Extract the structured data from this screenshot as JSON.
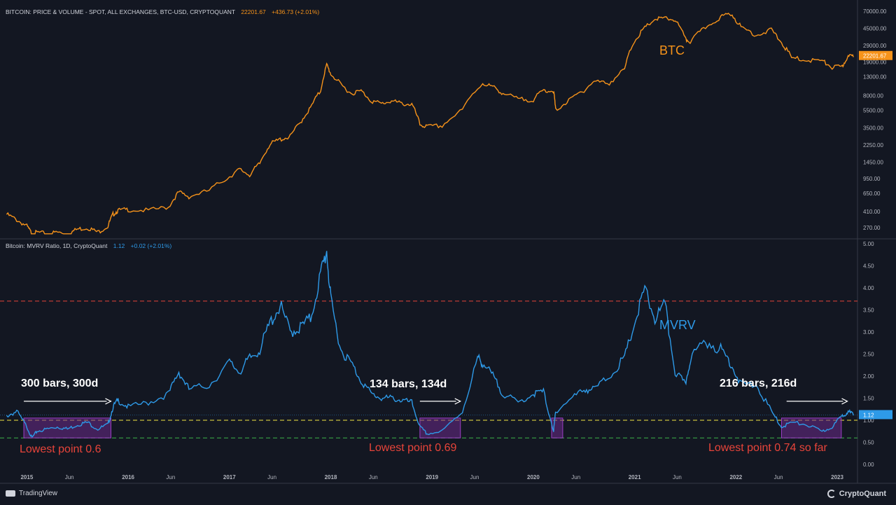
{
  "header_top": {
    "title": "BITCOIN: PRICE & VOLUME - SPOT, ALL EXCHANGES, BTC-USD, CRYPTOQUANT",
    "value": "22201.67",
    "change": "+436.73 (+2.01%)"
  },
  "header_bottom": {
    "title": "Bitcoin: MVRV Ratio, 1D, CryptoQuant",
    "value": "1.12",
    "change": "+0.02 (+2.01%)"
  },
  "footer": {
    "left_brand": "TradingView",
    "right_brand": "CryptoQuant"
  },
  "colors": {
    "background": "#131722",
    "btc": "#f7931a",
    "mvrv": "#2e9ae8",
    "red_line": "#e8443a",
    "yellow_line": "#f0e442",
    "green_line": "#3cb44b",
    "box": "#6b2a8a",
    "annotation_red": "#e8443a"
  },
  "chart_data": [
    {
      "type": "line",
      "scale": "log",
      "series": [
        {
          "name": "BTC",
          "x": [
            2014.8,
            2014.9,
            2015.0,
            2015.05,
            2015.1,
            2015.2,
            2015.3,
            2015.4,
            2015.5,
            2015.6,
            2015.7,
            2015.8,
            2015.85,
            2015.9,
            2016.0,
            2016.2,
            2016.4,
            2016.5,
            2016.6,
            2016.8,
            2017.0,
            2017.1,
            2017.2,
            2017.3,
            2017.4,
            2017.5,
            2017.6,
            2017.7,
            2017.8,
            2017.9,
            2017.96,
            2018.0,
            2018.1,
            2018.2,
            2018.3,
            2018.4,
            2018.5,
            2018.6,
            2018.7,
            2018.8,
            2018.88,
            2018.95,
            2019.1,
            2019.3,
            2019.5,
            2019.6,
            2019.7,
            2019.85,
            2020.0,
            2020.1,
            2020.2,
            2020.22,
            2020.35,
            2020.5,
            2020.6,
            2020.75,
            2020.9,
            2021.0,
            2021.1,
            2021.2,
            2021.3,
            2021.4,
            2021.5,
            2021.55,
            2021.7,
            2021.85,
            2021.95,
            2022.05,
            2022.2,
            2022.35,
            2022.45,
            2022.55,
            2022.7,
            2022.85,
            2022.95,
            2023.05,
            2023.1,
            2023.16
          ],
          "y": [
            380,
            330,
            280,
            230,
            240,
            230,
            240,
            230,
            260,
            270,
            240,
            280,
            380,
            420,
            430,
            420,
            460,
            670,
            600,
            700,
            1000,
            1200,
            1050,
            1400,
            2300,
            2600,
            2800,
            4000,
            5800,
            9000,
            17500,
            14000,
            10500,
            8500,
            9000,
            7000,
            6500,
            7000,
            6500,
            6400,
            3800,
            3600,
            3700,
            5500,
            11000,
            10000,
            8500,
            7300,
            7200,
            9200,
            9000,
            5500,
            7000,
            9200,
            11500,
            11000,
            15500,
            33000,
            45000,
            57000,
            58000,
            56000,
            34000,
            32000,
            46000,
            60000,
            66000,
            46000,
            38000,
            43000,
            31000,
            21000,
            20000,
            19500,
            16500,
            16800,
            21500,
            22201.67
          ]
        }
      ],
      "yticks": [
        "70000.00",
        "45000.00",
        "29000.00",
        "19000.00",
        "13000.00",
        "8000.00",
        "5500.00",
        "3500.00",
        "2250.00",
        "1450.00",
        "950.00",
        "650.00",
        "410.00",
        "270.00"
      ],
      "labels": {
        "series_label": "BTC",
        "last_value": "22201.67"
      }
    },
    {
      "type": "line",
      "series": [
        {
          "name": "MVRV",
          "x": [
            2014.8,
            2014.9,
            2015.0,
            2015.05,
            2015.1,
            2015.2,
            2015.3,
            2015.4,
            2015.5,
            2015.6,
            2015.7,
            2015.8,
            2015.85,
            2015.9,
            2016.0,
            2016.2,
            2016.4,
            2016.5,
            2016.6,
            2016.8,
            2017.0,
            2017.1,
            2017.2,
            2017.3,
            2017.4,
            2017.5,
            2017.6,
            2017.7,
            2017.8,
            2017.9,
            2017.96,
            2018.0,
            2018.1,
            2018.2,
            2018.3,
            2018.4,
            2018.5,
            2018.6,
            2018.7,
            2018.8,
            2018.88,
            2018.95,
            2019.1,
            2019.3,
            2019.45,
            2019.5,
            2019.6,
            2019.7,
            2019.85,
            2020.0,
            2020.1,
            2020.2,
            2020.22,
            2020.35,
            2020.5,
            2020.6,
            2020.75,
            2020.9,
            2021.0,
            2021.1,
            2021.2,
            2021.3,
            2021.4,
            2021.5,
            2021.55,
            2021.7,
            2021.85,
            2021.95,
            2022.05,
            2022.2,
            2022.35,
            2022.45,
            2022.55,
            2022.7,
            2022.85,
            2022.95,
            2023.05,
            2023.1,
            2023.16
          ],
          "y": [
            1.1,
            1.2,
            0.85,
            0.6,
            0.75,
            0.8,
            0.85,
            0.8,
            0.9,
            0.95,
            0.8,
            0.9,
            1.3,
            1.45,
            1.3,
            1.4,
            1.6,
            2.1,
            1.7,
            1.8,
            2.3,
            2.1,
            2.4,
            2.6,
            3.2,
            3.6,
            3.0,
            3.1,
            3.3,
            4.3,
            4.85,
            3.7,
            2.6,
            2.3,
            1.9,
            1.6,
            1.5,
            1.5,
            1.45,
            1.4,
            0.85,
            0.69,
            0.75,
            1.2,
            2.4,
            2.3,
            2.0,
            1.6,
            1.4,
            1.6,
            1.65,
            0.75,
            1.2,
            1.45,
            1.7,
            1.7,
            2.0,
            2.4,
            3.2,
            3.95,
            3.3,
            3.6,
            2.1,
            1.8,
            2.4,
            2.8,
            2.6,
            2.3,
            1.8,
            1.8,
            1.2,
            0.85,
            0.95,
            0.9,
            0.74,
            0.85,
            1.1,
            1.2,
            1.12
          ]
        }
      ],
      "ylim": [
        0,
        5
      ],
      "yticks": [
        "5.00",
        "4.50",
        "4.00",
        "3.50",
        "3.00",
        "2.50",
        "2.00",
        "1.50",
        "1.00",
        "0.50",
        "0.00"
      ],
      "hlines": [
        3.7,
        1.0,
        0.6
      ],
      "xticks": [
        {
          "label": "2015",
          "x": 2015.0
        },
        {
          "label": "Jun",
          "x": 2015.42
        },
        {
          "label": "2016",
          "x": 2016.0
        },
        {
          "label": "Jun",
          "x": 2016.42
        },
        {
          "label": "2017",
          "x": 2017.0
        },
        {
          "label": "Jun",
          "x": 2017.42
        },
        {
          "label": "2018",
          "x": 2018.0
        },
        {
          "label": "Jun",
          "x": 2018.42
        },
        {
          "label": "2019",
          "x": 2019.0
        },
        {
          "label": "Jun",
          "x": 2019.42
        },
        {
          "label": "2020",
          "x": 2020.0
        },
        {
          "label": "Jun",
          "x": 2020.42
        },
        {
          "label": "2021",
          "x": 2021.0
        },
        {
          "label": "Jun",
          "x": 2021.42
        },
        {
          "label": "2022",
          "x": 2022.0
        },
        {
          "label": "Jun",
          "x": 2022.42
        },
        {
          "label": "2023",
          "x": 2023.0
        }
      ],
      "boxes": [
        {
          "x0": 2014.97,
          "x1": 2015.83,
          "y0": 0.6,
          "y1": 1.05
        },
        {
          "x0": 2018.88,
          "x1": 2019.28,
          "y0": 0.6,
          "y1": 1.05
        },
        {
          "x0": 2020.18,
          "x1": 2020.29,
          "y0": 0.6,
          "y1": 1.05
        },
        {
          "x0": 2022.45,
          "x1": 2023.04,
          "y0": 0.6,
          "y1": 1.05
        }
      ],
      "arrows": [
        {
          "x0": 2014.97,
          "x1": 2015.83,
          "y": 1.43
        },
        {
          "x0": 2018.88,
          "x1": 2019.28,
          "y": 1.43
        },
        {
          "x0": 2022.5,
          "x1": 2023.1,
          "y": 1.43
        }
      ],
      "labels": {
        "series_label": "MVRV",
        "last_value": "1.12",
        "bars_1": "300 bars, 300d",
        "bars_2": "134 bars, 134d",
        "bars_3": "216 bars, 216d",
        "low_1": "Lowest point 0.6",
        "low_2": "Lowest point 0.69",
        "low_3": "Lowest point 0.74 so far"
      }
    }
  ]
}
